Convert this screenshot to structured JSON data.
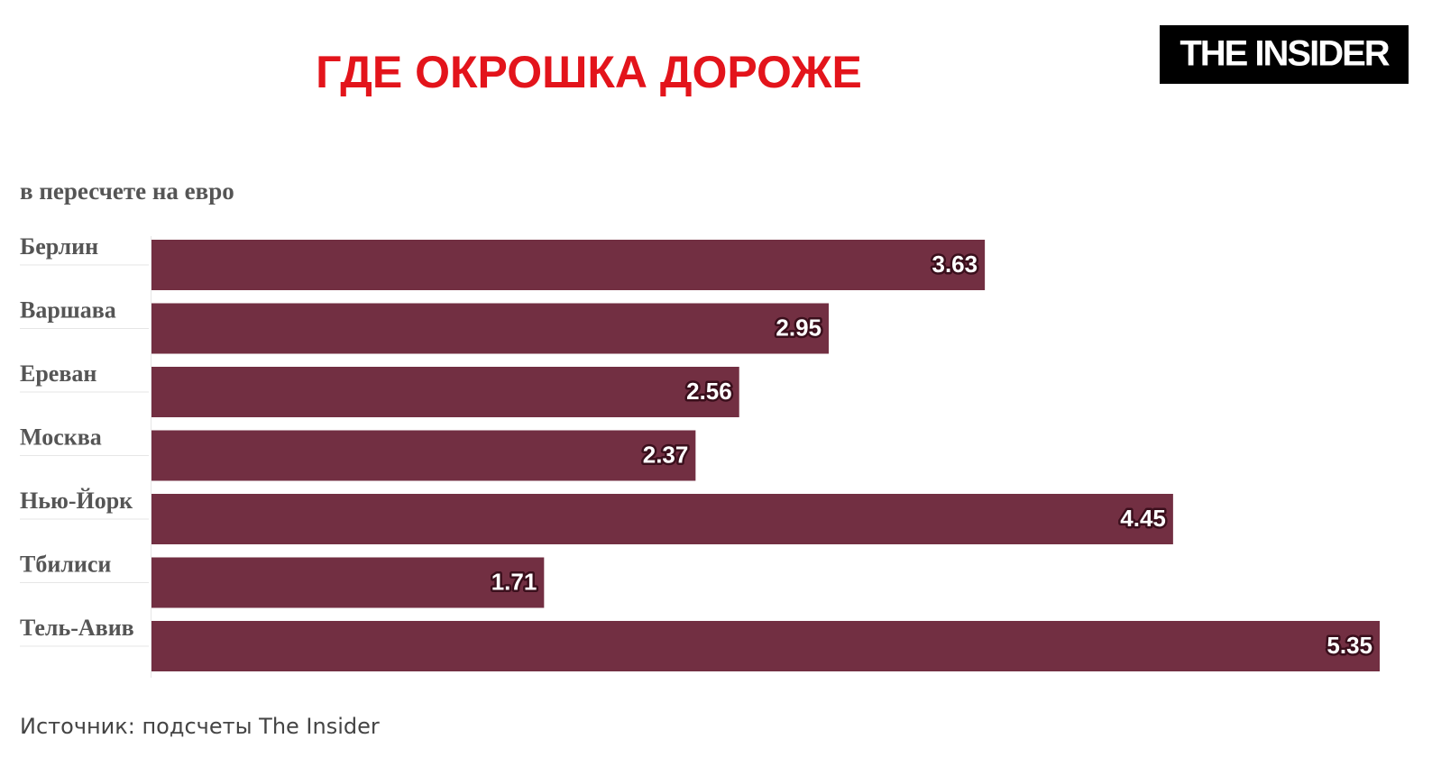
{
  "brand": "THE INSIDER",
  "chart_data": {
    "type": "bar",
    "orientation": "horizontal",
    "title": "ГДЕ ОКРОШКА ДОРОЖЕ",
    "subtitle": "в пересчете на евро",
    "categories": [
      "Берлин",
      "Варшава",
      "Ереван",
      "Москва",
      "Нью-Йорк",
      "Тбилиси",
      "Тель-Авив"
    ],
    "values": [
      3.63,
      2.95,
      2.56,
      2.37,
      4.45,
      1.71,
      5.35
    ],
    "color": "#722f42",
    "source": "Источник: подсчеты The Insider"
  }
}
